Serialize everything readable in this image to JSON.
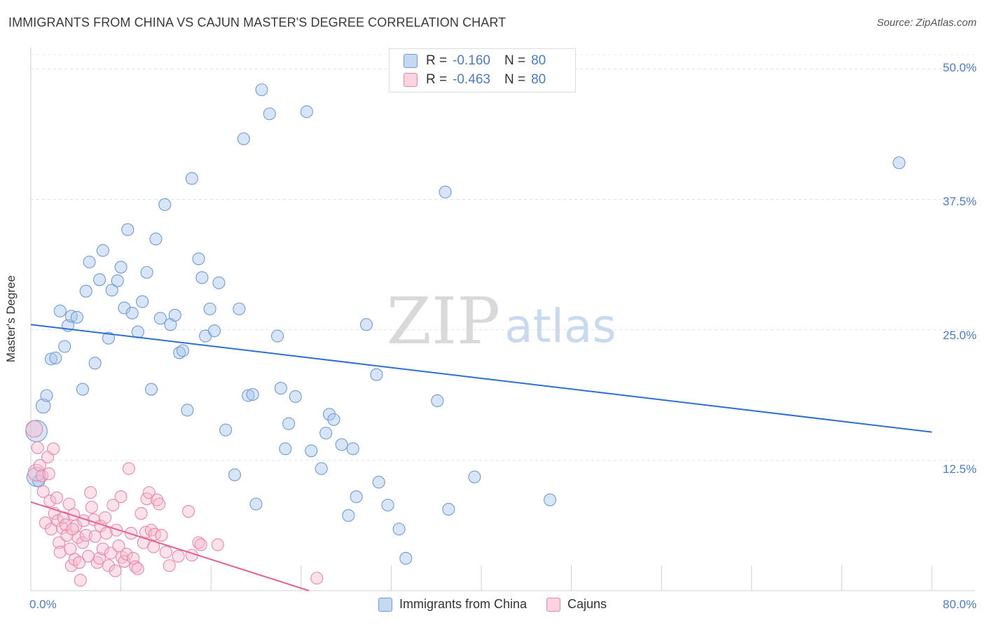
{
  "title": "IMMIGRANTS FROM CHINA VS CAJUN MASTER'S DEGREE CORRELATION CHART",
  "source": "Source: ZipAtlas.com",
  "watermark": {
    "zip": "ZIP",
    "atlas": "atlas"
  },
  "legend": {
    "rows": [
      {
        "r_label": "R =",
        "r_value": "-0.160",
        "n_label": "N =",
        "n_value": "80",
        "color": "#a9c6ec",
        "border": "#6f9bd6"
      },
      {
        "r_label": "R =",
        "r_value": "-0.463",
        "n_label": "N =",
        "n_value": "80",
        "color": "#f7bcd0",
        "border": "#e987a9"
      }
    ]
  },
  "bottom_legend": [
    {
      "label": "Immigrants from China",
      "color": "#a9c6ec",
      "border": "#6f9bd6"
    },
    {
      "label": "Cajuns",
      "color": "#f7bcd0",
      "border": "#e987a9"
    }
  ],
  "axis": {
    "y_label": "Master's Degree",
    "y_ticks": [
      "50.0%",
      "37.5%",
      "25.0%",
      "12.5%"
    ],
    "x_min_label": "0.0%",
    "x_max_label": "80.0%"
  },
  "chart_data": {
    "type": "scatter",
    "title": "IMMIGRANTS FROM CHINA VS CAJUN MASTER'S DEGREE CORRELATION CHART",
    "xlabel": "",
    "ylabel": "Master's Degree",
    "xlim": [
      0,
      80
    ],
    "ylim": [
      0,
      51.5
    ],
    "y_ticks": [
      12.5,
      25.0,
      37.5,
      50.0
    ],
    "x_tick_labels": [
      "0.0%",
      "80.0%"
    ],
    "grid": true,
    "legend_position": "top-center",
    "series": [
      {
        "name": "Immigrants from China",
        "color": "#6f9bd6",
        "fill": "#a9c6ec",
        "trend": {
          "x": [
            0,
            80
          ],
          "y": [
            25.5,
            15.2
          ],
          "color": "#2e6fd1"
        },
        "points": [
          [
            0.5,
            15.3,
            1.8
          ],
          [
            0.5,
            10.9,
            1.6
          ],
          [
            1.1,
            17.7,
            1.2
          ],
          [
            1.4,
            18.7,
            1.0
          ],
          [
            1.8,
            22.2,
            1.0
          ],
          [
            2.2,
            22.3,
            1.0
          ],
          [
            2.6,
            26.8,
            1.0
          ],
          [
            3.0,
            23.4,
            1.0
          ],
          [
            3.3,
            25.4,
            1.0
          ],
          [
            3.6,
            26.3,
            1.0
          ],
          [
            4.1,
            26.2,
            1.0
          ],
          [
            4.6,
            19.3,
            1.0
          ],
          [
            4.9,
            28.7,
            1.0
          ],
          [
            5.2,
            31.5,
            1.0
          ],
          [
            5.7,
            21.8,
            1.0
          ],
          [
            6.1,
            29.8,
            1.0
          ],
          [
            6.4,
            32.6,
            1.0
          ],
          [
            6.9,
            24.2,
            1.0
          ],
          [
            7.2,
            28.8,
            1.0
          ],
          [
            7.7,
            29.7,
            1.0
          ],
          [
            8.0,
            31.0,
            1.0
          ],
          [
            8.3,
            27.1,
            1.0
          ],
          [
            8.6,
            34.6,
            1.0
          ],
          [
            9.0,
            26.6,
            1.0
          ],
          [
            9.5,
            24.8,
            1.0
          ],
          [
            9.9,
            27.7,
            1.0
          ],
          [
            10.3,
            30.5,
            1.0
          ],
          [
            10.7,
            19.3,
            1.0
          ],
          [
            11.1,
            33.7,
            1.0
          ],
          [
            11.5,
            26.1,
            1.0
          ],
          [
            11.9,
            37.0,
            1.0
          ],
          [
            12.4,
            25.5,
            1.0
          ],
          [
            12.8,
            26.4,
            1.0
          ],
          [
            13.2,
            22.8,
            1.0
          ],
          [
            13.5,
            23.0,
            1.0
          ],
          [
            13.9,
            17.3,
            1.0
          ],
          [
            14.3,
            39.5,
            1.0
          ],
          [
            14.9,
            31.8,
            1.0
          ],
          [
            15.2,
            30.0,
            1.0
          ],
          [
            15.5,
            24.4,
            1.0
          ],
          [
            15.9,
            27.0,
            1.0
          ],
          [
            16.3,
            24.9,
            1.0
          ],
          [
            16.7,
            29.5,
            1.0
          ],
          [
            17.3,
            15.4,
            1.0
          ],
          [
            18.1,
            11.1,
            1.0
          ],
          [
            18.5,
            27.0,
            1.0
          ],
          [
            18.9,
            43.3,
            1.0
          ],
          [
            19.3,
            18.7,
            1.0
          ],
          [
            19.7,
            18.8,
            1.0
          ],
          [
            20.0,
            8.3,
            1.0
          ],
          [
            20.5,
            48.0,
            1.0
          ],
          [
            21.2,
            45.7,
            1.0
          ],
          [
            21.9,
            24.4,
            1.0
          ],
          [
            22.2,
            19.4,
            1.0
          ],
          [
            22.6,
            13.6,
            1.0
          ],
          [
            22.9,
            16.0,
            1.0
          ],
          [
            23.5,
            18.6,
            1.0
          ],
          [
            24.5,
            45.9,
            1.0
          ],
          [
            24.9,
            13.4,
            1.0
          ],
          [
            25.8,
            11.7,
            1.0
          ],
          [
            26.2,
            15.1,
            1.0
          ],
          [
            26.5,
            16.9,
            1.0
          ],
          [
            26.9,
            16.4,
            1.0
          ],
          [
            27.6,
            14.0,
            1.0
          ],
          [
            28.2,
            7.2,
            1.0
          ],
          [
            28.6,
            13.6,
            1.0
          ],
          [
            28.9,
            9.0,
            1.0
          ],
          [
            29.8,
            25.5,
            1.0
          ],
          [
            30.7,
            20.7,
            1.0
          ],
          [
            30.9,
            10.4,
            1.0
          ],
          [
            31.7,
            8.2,
            1.0
          ],
          [
            32.7,
            5.9,
            1.0
          ],
          [
            33.3,
            3.1,
            1.0
          ],
          [
            36.1,
            18.2,
            1.0
          ],
          [
            36.8,
            38.2,
            1.0
          ],
          [
            37.1,
            7.8,
            1.0
          ],
          [
            39.4,
            10.9,
            1.0
          ],
          [
            46.1,
            8.7,
            1.0
          ],
          [
            77.1,
            41.0,
            1.0
          ],
          [
            0.7,
            10.5,
            1.0
          ]
        ]
      },
      {
        "name": "Cajuns",
        "color": "#e987a9",
        "fill": "#f7bcd0",
        "trend": {
          "x": [
            0,
            24.7
          ],
          "y": [
            8.5,
            0
          ],
          "color": "#e2638f"
        },
        "points": [
          [
            0.3,
            15.5,
            1.4
          ],
          [
            0.5,
            11.3,
            1.4
          ],
          [
            0.6,
            13.7,
            1.0
          ],
          [
            0.8,
            12.0,
            1.0
          ],
          [
            1.0,
            11.0,
            1.0
          ],
          [
            1.1,
            9.5,
            1.0
          ],
          [
            1.3,
            6.5,
            1.0
          ],
          [
            1.5,
            12.8,
            1.0
          ],
          [
            1.6,
            11.2,
            1.0
          ],
          [
            1.7,
            8.6,
            1.0
          ],
          [
            1.8,
            5.9,
            1.0
          ],
          [
            2.0,
            13.6,
            1.0
          ],
          [
            2.1,
            7.4,
            1.0
          ],
          [
            2.3,
            8.9,
            1.0
          ],
          [
            2.4,
            6.7,
            1.0
          ],
          [
            2.5,
            4.6,
            1.0
          ],
          [
            2.6,
            3.7,
            1.0
          ],
          [
            2.8,
            6.0,
            1.0
          ],
          [
            2.9,
            7.0,
            1.0
          ],
          [
            3.1,
            6.3,
            1.0
          ],
          [
            3.2,
            5.3,
            1.0
          ],
          [
            3.4,
            8.3,
            1.0
          ],
          [
            3.5,
            4.0,
            1.0
          ],
          [
            3.6,
            2.4,
            1.0
          ],
          [
            3.8,
            7.3,
            1.0
          ],
          [
            3.9,
            3.0,
            1.0
          ],
          [
            4.0,
            6.2,
            1.0
          ],
          [
            4.2,
            5.1,
            1.0
          ],
          [
            4.3,
            2.7,
            1.0
          ],
          [
            4.4,
            1.0,
            1.0
          ],
          [
            4.6,
            4.6,
            1.0
          ],
          [
            4.7,
            6.7,
            1.0
          ],
          [
            4.9,
            5.3,
            1.0
          ],
          [
            5.1,
            3.3,
            1.0
          ],
          [
            5.3,
            9.4,
            1.0
          ],
          [
            5.4,
            8.0,
            1.0
          ],
          [
            5.6,
            6.8,
            1.0
          ],
          [
            5.7,
            5.2,
            1.0
          ],
          [
            5.9,
            2.7,
            1.0
          ],
          [
            6.1,
            3.1,
            1.0
          ],
          [
            6.2,
            6.2,
            1.0
          ],
          [
            6.4,
            4.0,
            1.0
          ],
          [
            6.6,
            7.0,
            1.0
          ],
          [
            6.7,
            5.5,
            1.0
          ],
          [
            6.9,
            2.4,
            1.0
          ],
          [
            7.1,
            3.6,
            1.0
          ],
          [
            7.3,
            8.2,
            1.0
          ],
          [
            7.5,
            1.9,
            1.0
          ],
          [
            7.6,
            5.8,
            1.0
          ],
          [
            7.8,
            4.3,
            1.0
          ],
          [
            8.0,
            9.0,
            1.0
          ],
          [
            8.1,
            3.2,
            1.0
          ],
          [
            8.3,
            2.8,
            1.0
          ],
          [
            8.5,
            3.5,
            1.0
          ],
          [
            8.7,
            11.7,
            1.0
          ],
          [
            8.9,
            5.5,
            1.0
          ],
          [
            9.1,
            3.1,
            1.0
          ],
          [
            9.3,
            2.3,
            1.0
          ],
          [
            9.5,
            2.1,
            1.0
          ],
          [
            9.8,
            7.4,
            1.0
          ],
          [
            10.0,
            4.6,
            1.0
          ],
          [
            10.2,
            5.6,
            1.0
          ],
          [
            10.3,
            8.8,
            1.0
          ],
          [
            10.5,
            9.4,
            1.0
          ],
          [
            10.7,
            5.8,
            1.0
          ],
          [
            10.9,
            4.2,
            1.0
          ],
          [
            11.0,
            5.4,
            1.0
          ],
          [
            11.2,
            8.7,
            1.0
          ],
          [
            11.4,
            8.3,
            1.0
          ],
          [
            11.6,
            5.3,
            1.0
          ],
          [
            12.0,
            3.7,
            1.0
          ],
          [
            12.3,
            2.4,
            1.0
          ],
          [
            13.1,
            3.3,
            1.0
          ],
          [
            14.0,
            7.6,
            1.0
          ],
          [
            14.3,
            3.4,
            1.0
          ],
          [
            14.9,
            4.6,
            1.0
          ],
          [
            15.1,
            4.4,
            1.0
          ],
          [
            16.6,
            4.4,
            1.0
          ],
          [
            25.4,
            1.2,
            1.0
          ],
          [
            3.7,
            5.9,
            1.0
          ]
        ]
      }
    ]
  }
}
